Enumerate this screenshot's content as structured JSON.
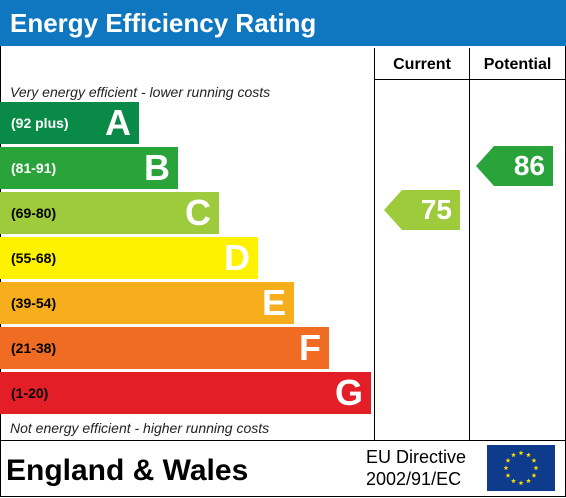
{
  "title": "Energy Efficiency Rating",
  "columns": {
    "current": "Current",
    "potential": "Potential"
  },
  "captions": {
    "top": "Very energy efficient - lower running costs",
    "bottom": "Not energy efficient - higher running costs"
  },
  "bands": [
    {
      "range": "(92 plus)",
      "letter": "A",
      "color": "#0a8a47",
      "range_color": "#ffffff"
    },
    {
      "range": "(81-91)",
      "letter": "B",
      "color": "#2aa43a",
      "range_color": "#ffffff"
    },
    {
      "range": "(69-80)",
      "letter": "C",
      "color": "#9dcb3c",
      "range_color": "#000000"
    },
    {
      "range": "(55-68)",
      "letter": "D",
      "color": "#fff200",
      "range_color": "#000000"
    },
    {
      "range": "(39-54)",
      "letter": "E",
      "color": "#f7ae1d",
      "range_color": "#000000"
    },
    {
      "range": "(21-38)",
      "letter": "F",
      "color": "#ef6c22",
      "range_color": "#000000"
    },
    {
      "range": "(1-20)",
      "letter": "G",
      "color": "#e41e26",
      "range_color": "#000000"
    }
  ],
  "current": {
    "value": "75",
    "color": "#9dcb3c"
  },
  "potential": {
    "value": "86",
    "color": "#2aa43a"
  },
  "footer": {
    "region": "England & Wales",
    "directive_line1": "EU Directive",
    "directive_line2": "2002/91/EC"
  },
  "eu_flag_colors": {
    "background": "#0f3b8c",
    "stars": "#ffdd00"
  }
}
